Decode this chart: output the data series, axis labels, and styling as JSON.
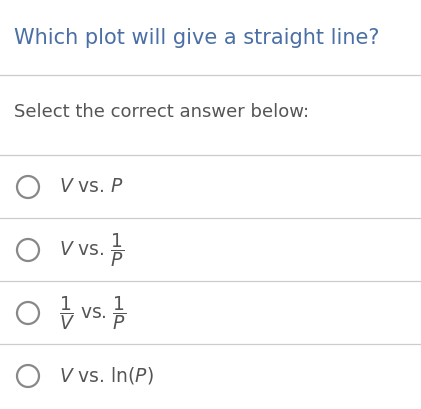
{
  "title": "Which plot will give a straight line?",
  "subtitle": "Select the correct answer below:",
  "bg_color": "#ffffff",
  "title_color": "#4a6fa5",
  "text_color": "#555555",
  "title_fontsize": 15,
  "subtitle_fontsize": 13,
  "option_fontsize": 13.5,
  "divider_color": "#cccccc",
  "circle_color": "#888888",
  "fig_width": 4.21,
  "fig_height": 4.09,
  "dpi": 100
}
